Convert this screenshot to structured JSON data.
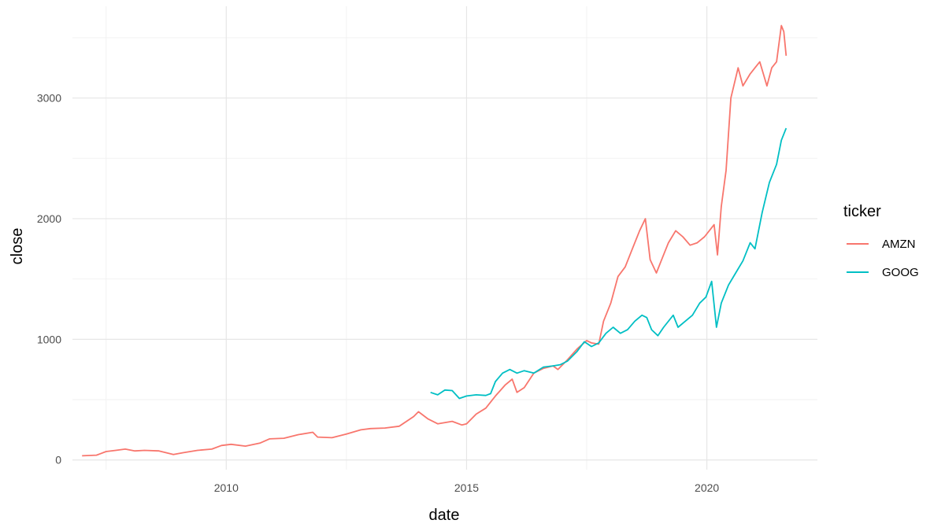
{
  "chart_data": {
    "type": "line",
    "title": "",
    "xlabel": "date",
    "ylabel": "close",
    "xlim": [
      2006.8,
      2022.3
    ],
    "ylim": [
      -80,
      3760
    ],
    "x_ticks": [
      2010,
      2015,
      2020
    ],
    "y_ticks": [
      0,
      1000,
      2000,
      3000
    ],
    "grid": true,
    "legend": {
      "title": "ticker",
      "position": "right"
    },
    "series": [
      {
        "name": "AMZN",
        "color": "#F8766D",
        "points": [
          [
            2007.0,
            35
          ],
          [
            2007.3,
            40
          ],
          [
            2007.5,
            70
          ],
          [
            2007.7,
            80
          ],
          [
            2007.9,
            90
          ],
          [
            2008.1,
            75
          ],
          [
            2008.3,
            80
          ],
          [
            2008.6,
            75
          ],
          [
            2008.9,
            45
          ],
          [
            2009.1,
            60
          ],
          [
            2009.4,
            80
          ],
          [
            2009.7,
            90
          ],
          [
            2009.9,
            120
          ],
          [
            2010.1,
            130
          ],
          [
            2010.4,
            115
          ],
          [
            2010.7,
            140
          ],
          [
            2010.9,
            175
          ],
          [
            2011.2,
            180
          ],
          [
            2011.5,
            210
          ],
          [
            2011.8,
            230
          ],
          [
            2011.9,
            190
          ],
          [
            2012.2,
            185
          ],
          [
            2012.5,
            215
          ],
          [
            2012.8,
            250
          ],
          [
            2013.0,
            260
          ],
          [
            2013.3,
            265
          ],
          [
            2013.6,
            280
          ],
          [
            2013.9,
            360
          ],
          [
            2014.0,
            400
          ],
          [
            2014.2,
            340
          ],
          [
            2014.4,
            300
          ],
          [
            2014.7,
            320
          ],
          [
            2014.9,
            290
          ],
          [
            2015.0,
            300
          ],
          [
            2015.2,
            380
          ],
          [
            2015.4,
            430
          ],
          [
            2015.6,
            530
          ],
          [
            2015.8,
            620
          ],
          [
            2015.95,
            670
          ],
          [
            2016.05,
            560
          ],
          [
            2016.2,
            600
          ],
          [
            2016.4,
            720
          ],
          [
            2016.6,
            760
          ],
          [
            2016.8,
            780
          ],
          [
            2016.9,
            750
          ],
          [
            2017.1,
            830
          ],
          [
            2017.3,
            920
          ],
          [
            2017.5,
            990
          ],
          [
            2017.6,
            970
          ],
          [
            2017.75,
            960
          ],
          [
            2017.85,
            1150
          ],
          [
            2018.0,
            1300
          ],
          [
            2018.15,
            1520
          ],
          [
            2018.3,
            1600
          ],
          [
            2018.45,
            1750
          ],
          [
            2018.6,
            1900
          ],
          [
            2018.72,
            2000
          ],
          [
            2018.82,
            1660
          ],
          [
            2018.95,
            1550
          ],
          [
            2019.05,
            1650
          ],
          [
            2019.2,
            1800
          ],
          [
            2019.35,
            1900
          ],
          [
            2019.5,
            1850
          ],
          [
            2019.65,
            1780
          ],
          [
            2019.8,
            1800
          ],
          [
            2019.95,
            1850
          ],
          [
            2020.05,
            1900
          ],
          [
            2020.15,
            1950
          ],
          [
            2020.22,
            1700
          ],
          [
            2020.3,
            2100
          ],
          [
            2020.4,
            2400
          ],
          [
            2020.5,
            3000
          ],
          [
            2020.65,
            3250
          ],
          [
            2020.75,
            3100
          ],
          [
            2020.9,
            3200
          ],
          [
            2021.0,
            3250
          ],
          [
            2021.1,
            3300
          ],
          [
            2021.25,
            3100
          ],
          [
            2021.35,
            3250
          ],
          [
            2021.45,
            3300
          ],
          [
            2021.55,
            3600
          ],
          [
            2021.6,
            3550
          ],
          [
            2021.65,
            3350
          ]
        ]
      },
      {
        "name": "GOOG",
        "color": "#00BFC4",
        "points": [
          [
            2014.25,
            560
          ],
          [
            2014.4,
            540
          ],
          [
            2014.55,
            580
          ],
          [
            2014.7,
            575
          ],
          [
            2014.85,
            510
          ],
          [
            2015.0,
            530
          ],
          [
            2015.2,
            540
          ],
          [
            2015.4,
            535
          ],
          [
            2015.5,
            550
          ],
          [
            2015.6,
            650
          ],
          [
            2015.75,
            720
          ],
          [
            2015.9,
            750
          ],
          [
            2016.05,
            720
          ],
          [
            2016.2,
            740
          ],
          [
            2016.4,
            720
          ],
          [
            2016.6,
            770
          ],
          [
            2016.8,
            780
          ],
          [
            2016.95,
            790
          ],
          [
            2017.1,
            820
          ],
          [
            2017.3,
            900
          ],
          [
            2017.45,
            980
          ],
          [
            2017.6,
            940
          ],
          [
            2017.75,
            970
          ],
          [
            2017.9,
            1050
          ],
          [
            2018.05,
            1100
          ],
          [
            2018.2,
            1050
          ],
          [
            2018.35,
            1080
          ],
          [
            2018.5,
            1150
          ],
          [
            2018.65,
            1200
          ],
          [
            2018.75,
            1180
          ],
          [
            2018.85,
            1080
          ],
          [
            2018.98,
            1030
          ],
          [
            2019.1,
            1100
          ],
          [
            2019.3,
            1200
          ],
          [
            2019.4,
            1100
          ],
          [
            2019.55,
            1150
          ],
          [
            2019.7,
            1200
          ],
          [
            2019.85,
            1300
          ],
          [
            2019.98,
            1350
          ],
          [
            2020.1,
            1480
          ],
          [
            2020.2,
            1100
          ],
          [
            2020.3,
            1300
          ],
          [
            2020.45,
            1450
          ],
          [
            2020.6,
            1550
          ],
          [
            2020.75,
            1650
          ],
          [
            2020.9,
            1800
          ],
          [
            2021.0,
            1750
          ],
          [
            2021.15,
            2050
          ],
          [
            2021.3,
            2300
          ],
          [
            2021.45,
            2450
          ],
          [
            2021.55,
            2650
          ],
          [
            2021.65,
            2750
          ]
        ]
      }
    ]
  }
}
